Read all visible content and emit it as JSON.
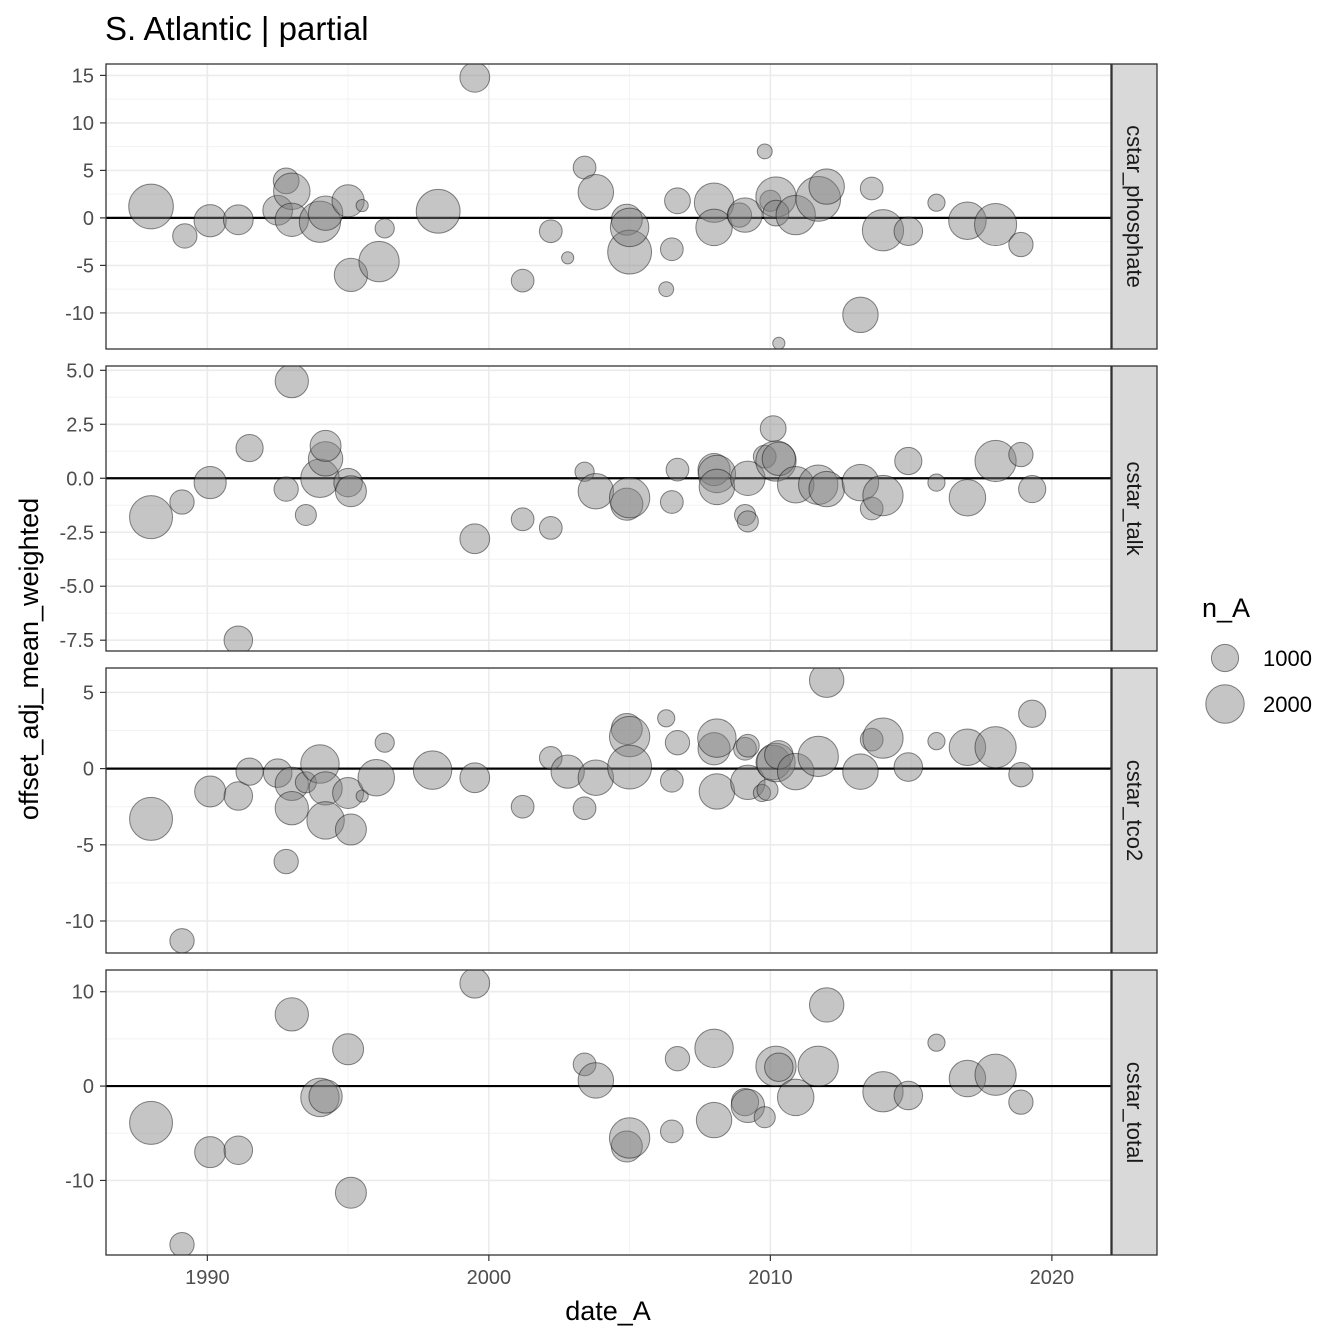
{
  "chart_data": {
    "type": "scatter",
    "title": "S. Atlantic | partial",
    "xlabel": "date_A",
    "ylabel": "offset_adj_mean_weighted",
    "xlim": [
      1986.4,
      2022.1
    ],
    "x_ticks": [
      1990,
      2000,
      2010,
      2020
    ],
    "grid": true,
    "reference_line_y": 0,
    "point_fill": "#7f7f7f",
    "point_alpha": 0.45,
    "legend": {
      "title": "n_A",
      "position": "right",
      "entries": [
        {
          "label": "1000",
          "n": 1000
        },
        {
          "label": "2000",
          "n": 2000
        }
      ]
    },
    "panels": [
      {
        "strip": "cstar_phosphate",
        "ylim": [
          -13.8,
          16.2
        ],
        "y_ticks": [
          -10,
          -5,
          0,
          5,
          10,
          15
        ],
        "y_tick_labels": [
          "-10",
          "-5",
          "0",
          "5",
          "10",
          "15"
        ],
        "points": [
          {
            "x": 1988.0,
            "y": 1.2,
            "n": 2700
          },
          {
            "x": 1989.2,
            "y": -1.9,
            "n": 800
          },
          {
            "x": 1990.1,
            "y": -0.3,
            "n": 1400
          },
          {
            "x": 1991.1,
            "y": -0.2,
            "n": 1200
          },
          {
            "x": 1992.5,
            "y": 0.8,
            "n": 1200
          },
          {
            "x": 1992.8,
            "y": 3.9,
            "n": 900
          },
          {
            "x": 1993.0,
            "y": 2.8,
            "n": 1800
          },
          {
            "x": 1993.0,
            "y": -0.2,
            "n": 1500
          },
          {
            "x": 1994.0,
            "y": -0.4,
            "n": 2300
          },
          {
            "x": 1994.2,
            "y": 0.5,
            "n": 1600
          },
          {
            "x": 1995.0,
            "y": 1.8,
            "n": 1400
          },
          {
            "x": 1995.5,
            "y": 1.3,
            "n": 200
          },
          {
            "x": 1995.1,
            "y": -6.0,
            "n": 1500
          },
          {
            "x": 1996.1,
            "y": -4.6,
            "n": 2200
          },
          {
            "x": 1996.3,
            "y": -1.1,
            "n": 500
          },
          {
            "x": 1998.2,
            "y": 0.7,
            "n": 2600
          },
          {
            "x": 1999.5,
            "y": 14.8,
            "n": 1200
          },
          {
            "x": 2001.2,
            "y": -6.6,
            "n": 700
          },
          {
            "x": 2002.2,
            "y": -1.4,
            "n": 700
          },
          {
            "x": 2002.8,
            "y": -4.2,
            "n": 200
          },
          {
            "x": 2003.4,
            "y": 5.3,
            "n": 700
          },
          {
            "x": 2003.8,
            "y": 2.7,
            "n": 1700
          },
          {
            "x": 2004.9,
            "y": -0.2,
            "n": 1300
          },
          {
            "x": 2005.0,
            "y": -3.6,
            "n": 2600
          },
          {
            "x": 2005.0,
            "y": -1.0,
            "n": 2000
          },
          {
            "x": 2006.3,
            "y": -7.5,
            "n": 300
          },
          {
            "x": 2006.5,
            "y": -3.3,
            "n": 700
          },
          {
            "x": 2006.7,
            "y": 1.8,
            "n": 900
          },
          {
            "x": 2008.0,
            "y": 1.6,
            "n": 2100
          },
          {
            "x": 2008.0,
            "y": -1.0,
            "n": 1800
          },
          {
            "x": 2008.9,
            "y": 0.3,
            "n": 800
          },
          {
            "x": 2009.1,
            "y": 0.3,
            "n": 1600
          },
          {
            "x": 2009.8,
            "y": 7.0,
            "n": 300
          },
          {
            "x": 2010.0,
            "y": 1.8,
            "n": 600
          },
          {
            "x": 2010.2,
            "y": 2.2,
            "n": 2200
          },
          {
            "x": 2010.2,
            "y": 0.5,
            "n": 900
          },
          {
            "x": 2010.3,
            "y": -13.2,
            "n": 200
          },
          {
            "x": 2010.9,
            "y": 0.3,
            "n": 2100
          },
          {
            "x": 2011.7,
            "y": 2.0,
            "n": 2700
          },
          {
            "x": 2012.0,
            "y": 3.3,
            "n": 1700
          },
          {
            "x": 2013.2,
            "y": -10.2,
            "n": 1700
          },
          {
            "x": 2013.6,
            "y": 3.1,
            "n": 700
          },
          {
            "x": 2014.0,
            "y": -1.3,
            "n": 2300
          },
          {
            "x": 2014.9,
            "y": -1.4,
            "n": 1100
          },
          {
            "x": 2015.9,
            "y": 1.6,
            "n": 400
          },
          {
            "x": 2017.0,
            "y": -0.3,
            "n": 1900
          },
          {
            "x": 2018.0,
            "y": -0.7,
            "n": 2400
          },
          {
            "x": 2018.9,
            "y": -2.8,
            "n": 800
          }
        ]
      },
      {
        "strip": "cstar_talk",
        "ylim": [
          -8.0,
          5.2
        ],
        "y_ticks": [
          -7.5,
          -5.0,
          -2.5,
          0.0,
          2.5,
          5.0
        ],
        "y_tick_labels": [
          "-7.5",
          "-5.0",
          "-2.5",
          "0.0",
          "2.5",
          "5.0"
        ],
        "points": [
          {
            "x": 1988.0,
            "y": -1.8,
            "n": 2500
          },
          {
            "x": 1989.1,
            "y": -1.1,
            "n": 800
          },
          {
            "x": 1990.1,
            "y": -0.2,
            "n": 1400
          },
          {
            "x": 1991.1,
            "y": -7.5,
            "n": 1100
          },
          {
            "x": 1991.5,
            "y": 1.4,
            "n": 1000
          },
          {
            "x": 1992.8,
            "y": -0.5,
            "n": 800
          },
          {
            "x": 1993.0,
            "y": 4.5,
            "n": 1500
          },
          {
            "x": 1993.5,
            "y": -1.7,
            "n": 600
          },
          {
            "x": 1994.0,
            "y": 0.0,
            "n": 2000
          },
          {
            "x": 1994.2,
            "y": 0.9,
            "n": 1600
          },
          {
            "x": 1994.2,
            "y": 1.5,
            "n": 1300
          },
          {
            "x": 1995.0,
            "y": -0.2,
            "n": 1100
          },
          {
            "x": 1995.1,
            "y": -0.6,
            "n": 1300
          },
          {
            "x": 1999.5,
            "y": -2.8,
            "n": 1200
          },
          {
            "x": 2001.2,
            "y": -1.9,
            "n": 700
          },
          {
            "x": 2002.2,
            "y": -2.3,
            "n": 700
          },
          {
            "x": 2003.4,
            "y": 0.3,
            "n": 500
          },
          {
            "x": 2003.8,
            "y": -0.6,
            "n": 1700
          },
          {
            "x": 2004.9,
            "y": -1.2,
            "n": 1400
          },
          {
            "x": 2005.0,
            "y": -0.9,
            "n": 2200
          },
          {
            "x": 2006.5,
            "y": -1.1,
            "n": 700
          },
          {
            "x": 2006.7,
            "y": 0.4,
            "n": 700
          },
          {
            "x": 2008.0,
            "y": 0.4,
            "n": 1400
          },
          {
            "x": 2008.1,
            "y": 0.2,
            "n": 1900
          },
          {
            "x": 2008.1,
            "y": -0.4,
            "n": 1700
          },
          {
            "x": 2009.1,
            "y": -1.7,
            "n": 600
          },
          {
            "x": 2009.2,
            "y": -2.0,
            "n": 600
          },
          {
            "x": 2009.2,
            "y": 0.0,
            "n": 1600
          },
          {
            "x": 2009.8,
            "y": 1.0,
            "n": 700
          },
          {
            "x": 2010.1,
            "y": 2.3,
            "n": 900
          },
          {
            "x": 2010.2,
            "y": 0.8,
            "n": 2200
          },
          {
            "x": 2010.3,
            "y": 0.9,
            "n": 1500
          },
          {
            "x": 2010.9,
            "y": -0.3,
            "n": 1800
          },
          {
            "x": 2011.7,
            "y": -0.3,
            "n": 2100
          },
          {
            "x": 2012.0,
            "y": -0.5,
            "n": 1700
          },
          {
            "x": 2013.2,
            "y": -0.2,
            "n": 1800
          },
          {
            "x": 2013.6,
            "y": -1.4,
            "n": 700
          },
          {
            "x": 2014.0,
            "y": -0.8,
            "n": 2200
          },
          {
            "x": 2014.9,
            "y": 0.8,
            "n": 1000
          },
          {
            "x": 2015.9,
            "y": -0.2,
            "n": 400
          },
          {
            "x": 2017.0,
            "y": -0.9,
            "n": 1800
          },
          {
            "x": 2018.0,
            "y": 0.8,
            "n": 2300
          },
          {
            "x": 2018.9,
            "y": 1.1,
            "n": 800
          },
          {
            "x": 2019.3,
            "y": -0.5,
            "n": 1000
          }
        ]
      },
      {
        "strip": "cstar_tco2",
        "ylim": [
          -12.1,
          6.6
        ],
        "y_ticks": [
          -10,
          -5,
          0,
          5
        ],
        "y_tick_labels": [
          "-10",
          "-5",
          "0",
          "5"
        ],
        "points": [
          {
            "x": 1988.0,
            "y": -3.3,
            "n": 2500
          },
          {
            "x": 1989.1,
            "y": -11.3,
            "n": 800
          },
          {
            "x": 1990.1,
            "y": -1.5,
            "n": 1300
          },
          {
            "x": 1991.1,
            "y": -1.8,
            "n": 1100
          },
          {
            "x": 1991.5,
            "y": -0.2,
            "n": 1000
          },
          {
            "x": 1992.5,
            "y": -0.3,
            "n": 1100
          },
          {
            "x": 1992.8,
            "y": -6.1,
            "n": 800
          },
          {
            "x": 1993.0,
            "y": -1.0,
            "n": 1500
          },
          {
            "x": 1993.0,
            "y": -2.6,
            "n": 1500
          },
          {
            "x": 1993.5,
            "y": -0.9,
            "n": 600
          },
          {
            "x": 1994.0,
            "y": 0.3,
            "n": 2000
          },
          {
            "x": 1994.2,
            "y": -1.3,
            "n": 1500
          },
          {
            "x": 1994.2,
            "y": -3.4,
            "n": 1900
          },
          {
            "x": 1995.0,
            "y": -1.6,
            "n": 1300
          },
          {
            "x": 1995.1,
            "y": -4.0,
            "n": 1300
          },
          {
            "x": 1995.5,
            "y": -1.8,
            "n": 200
          },
          {
            "x": 1996.0,
            "y": -0.6,
            "n": 1800
          },
          {
            "x": 1996.3,
            "y": 1.7,
            "n": 500
          },
          {
            "x": 1998.0,
            "y": -0.1,
            "n": 2000
          },
          {
            "x": 1999.5,
            "y": -0.6,
            "n": 1200
          },
          {
            "x": 2001.2,
            "y": -2.5,
            "n": 700
          },
          {
            "x": 2002.2,
            "y": 0.7,
            "n": 700
          },
          {
            "x": 2002.8,
            "y": -0.2,
            "n": 1500
          },
          {
            "x": 2003.4,
            "y": -2.6,
            "n": 700
          },
          {
            "x": 2003.8,
            "y": -0.6,
            "n": 1700
          },
          {
            "x": 2004.9,
            "y": 2.6,
            "n": 1300
          },
          {
            "x": 2005.0,
            "y": 2.1,
            "n": 2200
          },
          {
            "x": 2005.0,
            "y": 0.1,
            "n": 2600
          },
          {
            "x": 2006.3,
            "y": 3.3,
            "n": 400
          },
          {
            "x": 2006.5,
            "y": -0.8,
            "n": 700
          },
          {
            "x": 2006.7,
            "y": 1.7,
            "n": 800
          },
          {
            "x": 2008.0,
            "y": 1.3,
            "n": 1400
          },
          {
            "x": 2008.1,
            "y": 2.0,
            "n": 2000
          },
          {
            "x": 2008.1,
            "y": -1.5,
            "n": 1700
          },
          {
            "x": 2009.1,
            "y": 1.3,
            "n": 700
          },
          {
            "x": 2009.2,
            "y": 1.5,
            "n": 700
          },
          {
            "x": 2009.2,
            "y": -0.9,
            "n": 1600
          },
          {
            "x": 2009.7,
            "y": -1.6,
            "n": 400
          },
          {
            "x": 2009.9,
            "y": -1.4,
            "n": 600
          },
          {
            "x": 2010.1,
            "y": 0.4,
            "n": 1600
          },
          {
            "x": 2010.2,
            "y": 0.4,
            "n": 2000
          },
          {
            "x": 2010.3,
            "y": 0.9,
            "n": 1100
          },
          {
            "x": 2010.9,
            "y": -0.2,
            "n": 1800
          },
          {
            "x": 2011.7,
            "y": 0.8,
            "n": 2200
          },
          {
            "x": 2012.0,
            "y": 5.8,
            "n": 1600
          },
          {
            "x": 2013.2,
            "y": -0.2,
            "n": 1700
          },
          {
            "x": 2013.6,
            "y": 1.9,
            "n": 700
          },
          {
            "x": 2014.0,
            "y": 2.0,
            "n": 2200
          },
          {
            "x": 2014.9,
            "y": 0.1,
            "n": 1100
          },
          {
            "x": 2015.9,
            "y": 1.8,
            "n": 400
          },
          {
            "x": 2017.0,
            "y": 1.4,
            "n": 1800
          },
          {
            "x": 2018.0,
            "y": 1.4,
            "n": 2300
          },
          {
            "x": 2018.9,
            "y": -0.4,
            "n": 800
          },
          {
            "x": 2019.3,
            "y": 3.6,
            "n": 1000
          }
        ]
      },
      {
        "strip": "cstar_total",
        "ylim": [
          -17.9,
          12.3
        ],
        "y_ticks": [
          -10,
          0,
          10
        ],
        "y_tick_labels": [
          "-10",
          "0",
          "10"
        ],
        "points": [
          {
            "x": 1988.0,
            "y": -3.9,
            "n": 2500
          },
          {
            "x": 1989.1,
            "y": -16.8,
            "n": 800
          },
          {
            "x": 1990.1,
            "y": -7.0,
            "n": 1300
          },
          {
            "x": 1991.1,
            "y": -6.8,
            "n": 1100
          },
          {
            "x": 1993.0,
            "y": 7.6,
            "n": 1500
          },
          {
            "x": 1994.0,
            "y": -1.2,
            "n": 2000
          },
          {
            "x": 1994.2,
            "y": -1.1,
            "n": 1500
          },
          {
            "x": 1995.0,
            "y": 3.9,
            "n": 1300
          },
          {
            "x": 1995.1,
            "y": -11.3,
            "n": 1300
          },
          {
            "x": 1999.5,
            "y": 10.9,
            "n": 1200
          },
          {
            "x": 2003.4,
            "y": 2.3,
            "n": 700
          },
          {
            "x": 2003.8,
            "y": 0.6,
            "n": 1700
          },
          {
            "x": 2004.9,
            "y": -6.4,
            "n": 1300
          },
          {
            "x": 2005.0,
            "y": -5.5,
            "n": 2200
          },
          {
            "x": 2006.5,
            "y": -4.8,
            "n": 700
          },
          {
            "x": 2006.7,
            "y": 2.9,
            "n": 800
          },
          {
            "x": 2008.0,
            "y": 4.0,
            "n": 2000
          },
          {
            "x": 2008.0,
            "y": -3.6,
            "n": 1700
          },
          {
            "x": 2009.1,
            "y": -1.7,
            "n": 1000
          },
          {
            "x": 2009.2,
            "y": -2.1,
            "n": 1500
          },
          {
            "x": 2009.8,
            "y": -3.3,
            "n": 600
          },
          {
            "x": 2010.2,
            "y": 2.1,
            "n": 2200
          },
          {
            "x": 2010.3,
            "y": 2.0,
            "n": 1100
          },
          {
            "x": 2010.9,
            "y": -1.2,
            "n": 1800
          },
          {
            "x": 2011.7,
            "y": 2.1,
            "n": 2200
          },
          {
            "x": 2012.0,
            "y": 8.6,
            "n": 1600
          },
          {
            "x": 2014.0,
            "y": -0.6,
            "n": 2200
          },
          {
            "x": 2014.9,
            "y": -1.0,
            "n": 1100
          },
          {
            "x": 2015.9,
            "y": 4.6,
            "n": 400
          },
          {
            "x": 2017.0,
            "y": 0.8,
            "n": 1800
          },
          {
            "x": 2018.0,
            "y": 1.2,
            "n": 2300
          },
          {
            "x": 2018.9,
            "y": -1.7,
            "n": 800
          }
        ]
      }
    ]
  }
}
